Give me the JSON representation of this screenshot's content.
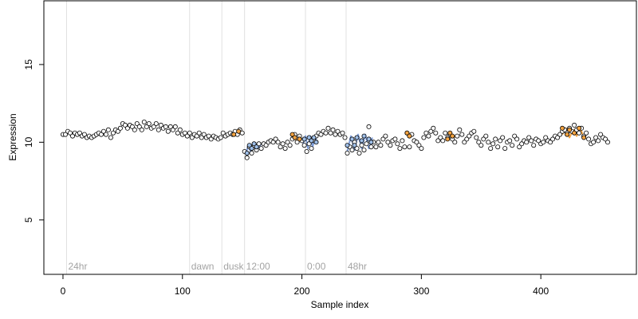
{
  "chart_data": {
    "type": "scatter",
    "title": "",
    "xlabel": "Sample index",
    "ylabel": "Expression",
    "xlim": [
      -16,
      480
    ],
    "ylim": [
      1.5,
      19.1
    ],
    "x_ticks": [
      0,
      100,
      200,
      300,
      400
    ],
    "y_ticks": [
      5,
      10,
      15
    ],
    "grid": false,
    "legend": "none",
    "colors": {
      "point_default": "#ffffff",
      "point_orange": "#f4a340",
      "point_blue": "#9fbfe8",
      "fit_orange": "#f4a340",
      "fit_blue": "#7f9fdb",
      "vline": "#e0e0e0",
      "annotation": "#a3a3a3",
      "axis": "#000000"
    },
    "vlines": [
      {
        "x": 3,
        "label": "24hr"
      },
      {
        "x": 106,
        "label": "dawn"
      },
      {
        "x": 133,
        "label": "dusk"
      },
      {
        "x": 152,
        "label": "12:00"
      },
      {
        "x": 203,
        "label": "0:00"
      },
      {
        "x": 237,
        "label": "48hr"
      }
    ],
    "fit_segments": [
      {
        "color": "orange",
        "x": [
          143,
          145,
          147,
          149,
          151
        ],
        "y": [
          10.55,
          10.7,
          10.55,
          10.75,
          10.6
        ]
      },
      {
        "color": "blue",
        "x": [
          153,
          155,
          157,
          160,
          163,
          166
        ],
        "y": [
          9.2,
          9.8,
          9.4,
          9.9,
          9.6,
          9.9
        ]
      },
      {
        "color": "orange",
        "x": [
          192,
          194,
          196,
          198,
          200
        ],
        "y": [
          10.1,
          10.4,
          10.0,
          10.35,
          10.1
        ]
      },
      {
        "color": "blue",
        "x": [
          201,
          203,
          205,
          207,
          209,
          211,
          213
        ],
        "y": [
          9.9,
          10.4,
          9.6,
          10.4,
          9.7,
          10.3,
          10.0
        ]
      },
      {
        "color": "blue",
        "x": [
          238,
          241,
          244,
          247,
          250,
          253,
          256,
          259
        ],
        "y": [
          9.4,
          10.4,
          9.5,
          10.5,
          9.6,
          10.5,
          9.6,
          10.3
        ]
      },
      {
        "color": "orange",
        "x": [
          322,
          324,
          326,
          328
        ],
        "y": [
          10.3,
          10.5,
          10.2,
          10.4
        ]
      },
      {
        "color": "orange",
        "x": [
          418,
          421,
          424,
          427,
          430,
          433,
          436,
          439
        ],
        "y": [
          10.5,
          10.9,
          10.3,
          10.8,
          10.4,
          10.9,
          10.3,
          10.6
        ]
      }
    ],
    "series": [
      {
        "name": "",
        "points": [
          [
            0,
            10.5
          ],
          [
            2,
            10.5
          ],
          [
            4,
            10.7
          ],
          [
            6,
            10.6
          ],
          [
            8,
            10.4
          ],
          [
            10,
            10.6
          ],
          [
            12,
            10.5
          ],
          [
            14,
            10.6
          ],
          [
            16,
            10.4
          ],
          [
            18,
            10.5
          ],
          [
            20,
            10.3
          ],
          [
            22,
            10.4
          ],
          [
            24,
            10.3
          ],
          [
            26,
            10.4
          ],
          [
            28,
            10.5
          ],
          [
            30,
            10.6
          ],
          [
            32,
            10.5
          ],
          [
            34,
            10.7
          ],
          [
            36,
            10.5
          ],
          [
            38,
            10.8
          ],
          [
            40,
            10.3
          ],
          [
            42,
            10.6
          ],
          [
            44,
            10.8
          ],
          [
            46,
            10.7
          ],
          [
            48,
            10.9
          ],
          [
            50,
            11.2
          ],
          [
            52,
            11.1
          ],
          [
            54,
            10.9
          ],
          [
            56,
            11.1
          ],
          [
            58,
            11.0
          ],
          [
            60,
            10.8
          ],
          [
            62,
            11.2
          ],
          [
            64,
            11.0
          ],
          [
            66,
            10.8
          ],
          [
            68,
            11.3
          ],
          [
            70,
            11.0
          ],
          [
            72,
            11.2
          ],
          [
            74,
            10.9
          ],
          [
            76,
            11.0
          ],
          [
            78,
            11.2
          ],
          [
            80,
            10.8
          ],
          [
            82,
            11.1
          ],
          [
            84,
            10.9
          ],
          [
            86,
            11.0
          ],
          [
            88,
            10.7
          ],
          [
            90,
            11.0
          ],
          [
            92,
            10.8
          ],
          [
            94,
            11.0
          ],
          [
            96,
            10.6
          ],
          [
            98,
            10.8
          ],
          [
            100,
            10.5
          ],
          [
            102,
            10.6
          ],
          [
            104,
            10.4
          ],
          [
            106,
            10.6
          ],
          [
            108,
            10.3
          ],
          [
            110,
            10.5
          ],
          [
            112,
            10.4
          ],
          [
            114,
            10.6
          ],
          [
            116,
            10.3
          ],
          [
            118,
            10.5
          ],
          [
            120,
            10.3
          ],
          [
            122,
            10.4
          ],
          [
            124,
            10.2
          ],
          [
            126,
            10.4
          ],
          [
            128,
            10.3
          ],
          [
            130,
            10.2
          ],
          [
            132,
            10.3
          ],
          [
            134,
            10.6
          ],
          [
            136,
            10.4
          ],
          [
            138,
            10.5
          ],
          [
            140,
            10.6
          ],
          [
            142,
            10.5
          ],
          [
            144,
            10.7
          ],
          [
            146,
            10.5
          ],
          [
            148,
            10.8
          ],
          [
            150,
            10.6
          ],
          [
            152,
            9.4
          ],
          [
            154,
            9.0
          ],
          [
            156,
            9.7
          ],
          [
            158,
            9.3
          ],
          [
            160,
            9.8
          ],
          [
            162,
            9.5
          ],
          [
            164,
            9.9
          ],
          [
            166,
            9.6
          ],
          [
            168,
            9.9
          ],
          [
            170,
            9.8
          ],
          [
            172,
            10.0
          ],
          [
            174,
            10.1
          ],
          [
            176,
            10.0
          ],
          [
            178,
            10.2
          ],
          [
            180,
            10.0
          ],
          [
            182,
            9.7
          ],
          [
            184,
            9.9
          ],
          [
            186,
            9.6
          ],
          [
            188,
            10.0
          ],
          [
            190,
            9.8
          ],
          [
            192,
            10.2
          ],
          [
            194,
            10.5
          ],
          [
            196,
            10.0
          ],
          [
            198,
            10.4
          ],
          [
            200,
            10.1
          ],
          [
            202,
            9.8
          ],
          [
            204,
            9.4
          ],
          [
            206,
            9.9
          ],
          [
            208,
            9.6
          ],
          [
            210,
            10.1
          ],
          [
            212,
            10.4
          ],
          [
            214,
            10.6
          ],
          [
            216,
            10.5
          ],
          [
            218,
            10.7
          ],
          [
            220,
            10.6
          ],
          [
            222,
            10.9
          ],
          [
            224,
            10.6
          ],
          [
            226,
            10.8
          ],
          [
            228,
            10.5
          ],
          [
            230,
            10.7
          ],
          [
            232,
            10.5
          ],
          [
            234,
            10.6
          ],
          [
            236,
            10.3
          ],
          [
            238,
            9.3
          ],
          [
            240,
            9.7
          ],
          [
            242,
            9.5
          ],
          [
            244,
            10.0
          ],
          [
            246,
            9.6
          ],
          [
            248,
            9.3
          ],
          [
            250,
            9.8
          ],
          [
            252,
            9.5
          ],
          [
            254,
            9.9
          ],
          [
            256,
            11.0
          ],
          [
            258,
            9.7
          ],
          [
            260,
            10.0
          ],
          [
            262,
            9.7
          ],
          [
            264,
            10.0
          ],
          [
            266,
            9.8
          ],
          [
            268,
            10.2
          ],
          [
            270,
            10.4
          ],
          [
            272,
            10.0
          ],
          [
            274,
            9.8
          ],
          [
            276,
            10.1
          ],
          [
            278,
            10.2
          ],
          [
            280,
            9.9
          ],
          [
            282,
            9.6
          ],
          [
            284,
            10.1
          ],
          [
            286,
            9.7
          ],
          [
            288,
            10.6
          ],
          [
            290,
            9.7
          ],
          [
            292,
            10.5
          ],
          [
            294,
            10.1
          ],
          [
            296,
            10.0
          ],
          [
            298,
            9.8
          ],
          [
            300,
            9.6
          ],
          [
            302,
            10.3
          ],
          [
            304,
            10.6
          ],
          [
            306,
            10.4
          ],
          [
            308,
            10.7
          ],
          [
            310,
            10.9
          ],
          [
            312,
            10.6
          ],
          [
            314,
            10.1
          ],
          [
            316,
            10.3
          ],
          [
            318,
            10.1
          ],
          [
            320,
            10.6
          ],
          [
            322,
            10.3
          ],
          [
            324,
            10.5
          ],
          [
            326,
            10.2
          ],
          [
            328,
            10.0
          ],
          [
            330,
            10.4
          ],
          [
            332,
            10.8
          ],
          [
            334,
            10.5
          ],
          [
            336,
            10.0
          ],
          [
            338,
            10.2
          ],
          [
            340,
            10.4
          ],
          [
            342,
            10.6
          ],
          [
            344,
            10.7
          ],
          [
            346,
            10.3
          ],
          [
            348,
            10.0
          ],
          [
            350,
            9.8
          ],
          [
            352,
            10.2
          ],
          [
            354,
            10.4
          ],
          [
            356,
            10.0
          ],
          [
            358,
            9.6
          ],
          [
            360,
            9.9
          ],
          [
            362,
            10.2
          ],
          [
            364,
            9.7
          ],
          [
            366,
            10.1
          ],
          [
            368,
            10.3
          ],
          [
            370,
            9.6
          ],
          [
            372,
            10.0
          ],
          [
            374,
            10.1
          ],
          [
            376,
            9.8
          ],
          [
            378,
            10.4
          ],
          [
            380,
            10.2
          ],
          [
            382,
            9.7
          ],
          [
            384,
            9.9
          ],
          [
            386,
            10.1
          ],
          [
            388,
            10.0
          ],
          [
            390,
            10.3
          ],
          [
            392,
            10.1
          ],
          [
            394,
            9.8
          ],
          [
            396,
            10.2
          ],
          [
            398,
            10.1
          ],
          [
            400,
            9.9
          ],
          [
            402,
            10.0
          ],
          [
            404,
            10.3
          ],
          [
            406,
            10.1
          ],
          [
            408,
            10.0
          ],
          [
            410,
            10.2
          ],
          [
            412,
            10.4
          ],
          [
            414,
            10.3
          ],
          [
            416,
            10.5
          ],
          [
            418,
            10.7
          ],
          [
            420,
            10.8
          ],
          [
            422,
            10.6
          ],
          [
            424,
            10.9
          ],
          [
            426,
            10.7
          ],
          [
            428,
            11.1
          ],
          [
            430,
            10.8
          ],
          [
            432,
            10.6
          ],
          [
            434,
            10.9
          ],
          [
            436,
            10.4
          ],
          [
            438,
            10.6
          ],
          [
            440,
            10.2
          ],
          [
            442,
            9.9
          ],
          [
            444,
            10.0
          ],
          [
            446,
            10.3
          ],
          [
            448,
            10.1
          ],
          [
            450,
            10.5
          ],
          [
            452,
            10.3
          ],
          [
            454,
            10.2
          ],
          [
            456,
            10.0
          ]
        ],
        "colored": {
          "orange": [
            [
              143,
              10.5
            ],
            [
              147,
              10.7
            ],
            [
              192,
              10.5
            ],
            [
              194,
              10.3
            ],
            [
              198,
              10.2
            ],
            [
              288,
              10.6
            ],
            [
              290,
              10.4
            ],
            [
              322,
              10.2
            ],
            [
              324,
              10.6
            ],
            [
              326,
              10.4
            ],
            [
              418,
              10.9
            ],
            [
              422,
              10.5
            ],
            [
              424,
              10.8
            ],
            [
              428,
              10.6
            ],
            [
              432,
              10.9
            ],
            [
              436,
              10.3
            ]
          ],
          "blue": [
            [
              154,
              9.3
            ],
            [
              156,
              9.8
            ],
            [
              158,
              9.6
            ],
            [
              160,
              9.9
            ],
            [
              162,
              9.7
            ],
            [
              202,
              10.2
            ],
            [
              206,
              10.3
            ],
            [
              208,
              10.1
            ],
            [
              210,
              10.3
            ],
            [
              212,
              10.0
            ],
            [
              238,
              9.8
            ],
            [
              242,
              10.2
            ],
            [
              244,
              9.8
            ],
            [
              246,
              10.3
            ],
            [
              250,
              10.1
            ],
            [
              252,
              10.4
            ],
            [
              256,
              10.2
            ],
            [
              258,
              10.0
            ]
          ]
        }
      }
    ]
  }
}
